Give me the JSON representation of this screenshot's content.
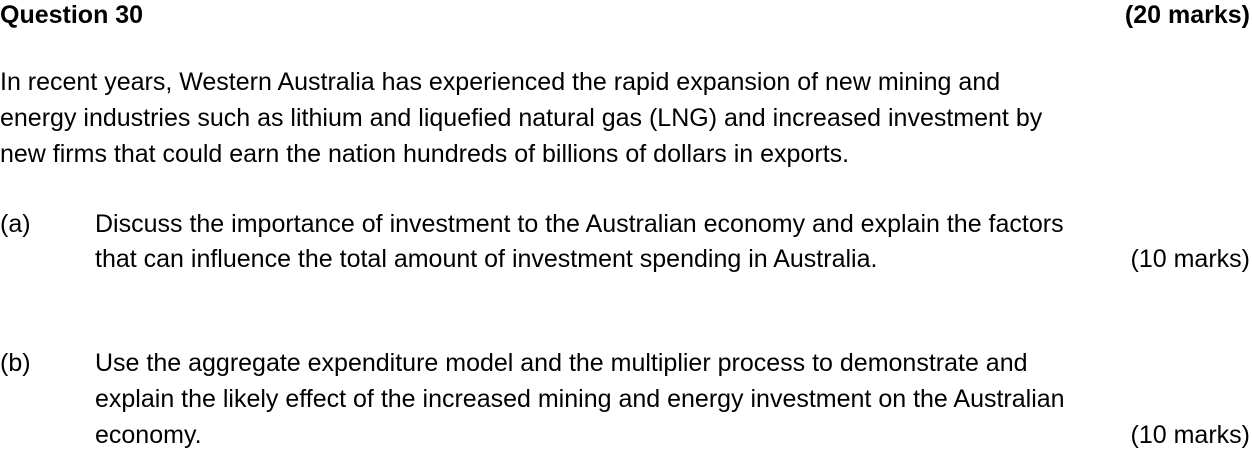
{
  "question": {
    "title": "Question 30",
    "marks": "(20 marks)",
    "intro": [
      "In recent years, Western Australia has experienced the rapid expansion of new mining and",
      "energy industries such as lithium and liquefied natural gas (LNG) and increased investment by",
      "new firms that could earn the nation hundreds of billions of dollars in exports."
    ]
  },
  "parts": [
    {
      "label": "(a)",
      "lines": [
        "Discuss the importance of investment to the Australian economy and explain the factors",
        "that can influence the total amount of investment spending in Australia."
      ],
      "marks": "(10 marks)"
    },
    {
      "label": "(b)",
      "lines": [
        "Use the aggregate expenditure model and the multiplier process to demonstrate and",
        "explain the likely effect of the increased mining and energy investment on the Australian",
        "economy."
      ],
      "marks": "(10 marks)"
    }
  ]
}
